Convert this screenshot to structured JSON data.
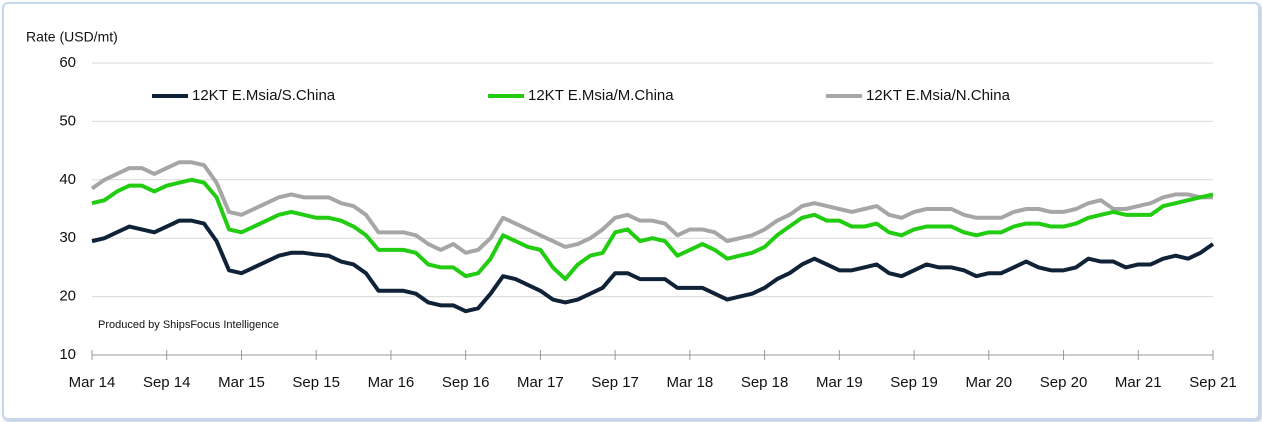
{
  "chart_data": {
    "type": "line",
    "y_label": "Rate (USD/mt)",
    "annotation": "Produced by ShipsFocus Intelligence",
    "categories": [
      "Mar 14",
      null,
      null,
      null,
      null,
      null,
      "Sep 14",
      null,
      null,
      null,
      null,
      null,
      "Mar 15",
      null,
      null,
      null,
      null,
      null,
      "Sep 15",
      null,
      null,
      null,
      null,
      null,
      "Mar 16",
      null,
      null,
      null,
      null,
      null,
      "Sep 16",
      null,
      null,
      null,
      null,
      null,
      "Mar 17",
      null,
      null,
      null,
      null,
      null,
      "Sep 17",
      null,
      null,
      null,
      null,
      null,
      "Mar 18",
      null,
      null,
      null,
      null,
      null,
      "Sep 18",
      null,
      null,
      null,
      null,
      null,
      "Mar 19",
      null,
      null,
      null,
      null,
      null,
      "Sep 19",
      null,
      null,
      null,
      null,
      null,
      "Mar 20",
      null,
      null,
      null,
      null,
      null,
      "Sep 20",
      null,
      null,
      null,
      null,
      null,
      "Mar 21",
      null,
      null,
      null,
      null,
      null,
      "Sep 21"
    ],
    "series": [
      {
        "name": "12KT E.Msia/S.China",
        "color": "#0f2238",
        "values": [
          29.5,
          30,
          31,
          32,
          31.5,
          31,
          32,
          33,
          33,
          32.5,
          29.5,
          24.5,
          24,
          25,
          26,
          27,
          27.5,
          27.5,
          27.2,
          27,
          26,
          25.5,
          24,
          21,
          21,
          21,
          20.5,
          19,
          18.5,
          18.5,
          17.5,
          18,
          20.5,
          23.5,
          23,
          22,
          21,
          19.5,
          19,
          19.5,
          20.5,
          21.5,
          24,
          24,
          23,
          23,
          23,
          21.5,
          21.5,
          21.5,
          20.5,
          19.5,
          20,
          20.5,
          21.5,
          23,
          24,
          25.5,
          26.5,
          25.5,
          24.5,
          24.5,
          25,
          25.5,
          24,
          23.5,
          24.5,
          25.5,
          25,
          25,
          24.5,
          23.5,
          24,
          24,
          25,
          26,
          25,
          24.5,
          24.5,
          25,
          26.5,
          26,
          26,
          25,
          25.5,
          25.5,
          26.5,
          27,
          26.5,
          27.5,
          29
        ]
      },
      {
        "name": "12KT E.Msia/M.China",
        "color": "#22cc11",
        "values": [
          36,
          36.5,
          38,
          39,
          39,
          38,
          39,
          39.5,
          40,
          39.5,
          37,
          31.5,
          31,
          32,
          33,
          34,
          34.5,
          34,
          33.5,
          33.5,
          33,
          32,
          30.5,
          28,
          28,
          28,
          27.5,
          25.5,
          25,
          25,
          23.5,
          24,
          26.5,
          30.5,
          29.5,
          28.5,
          28,
          25,
          23,
          25.5,
          27,
          27.5,
          31,
          31.5,
          29.5,
          30,
          29.5,
          27,
          28,
          29,
          28,
          26.5,
          27,
          27.5,
          28.5,
          30.5,
          32,
          33.5,
          34,
          33,
          33,
          32,
          32,
          32.5,
          31,
          30.5,
          31.5,
          32,
          32,
          32,
          31,
          30.5,
          31,
          31,
          32,
          32.5,
          32.5,
          32,
          32,
          32.5,
          33.5,
          34,
          34.5,
          34,
          34,
          34,
          35.5,
          36,
          36.5,
          37,
          37.5
        ]
      },
      {
        "name": "12KT E.Msia/N.China",
        "color": "#a6a6a6",
        "values": [
          38.5,
          40,
          41,
          42,
          42,
          41,
          42,
          43,
          43,
          42.5,
          39.5,
          34.5,
          34,
          35,
          36,
          37,
          37.5,
          37,
          37,
          37,
          36,
          35.5,
          34,
          31,
          31,
          31,
          30.5,
          29,
          28,
          29,
          27.5,
          28,
          30,
          33.5,
          32.5,
          31.5,
          30.5,
          29.5,
          28.5,
          29,
          30,
          31.5,
          33.5,
          34,
          33,
          33,
          32.5,
          30.5,
          31.5,
          31.5,
          31,
          29.5,
          30,
          30.5,
          31.5,
          33,
          34,
          35.5,
          36,
          35.5,
          35,
          34.5,
          35,
          35.5,
          34,
          33.5,
          34.5,
          35,
          35,
          35,
          34,
          33.5,
          33.5,
          33.5,
          34.5,
          35,
          35,
          34.5,
          34.5,
          35,
          36,
          36.5,
          35,
          35,
          35.5,
          36,
          37,
          37.5,
          37.5,
          37,
          37
        ]
      }
    ],
    "ylim": [
      10,
      60
    ],
    "yticks": [
      10,
      20,
      30,
      40,
      50,
      60
    ],
    "grid": true
  }
}
